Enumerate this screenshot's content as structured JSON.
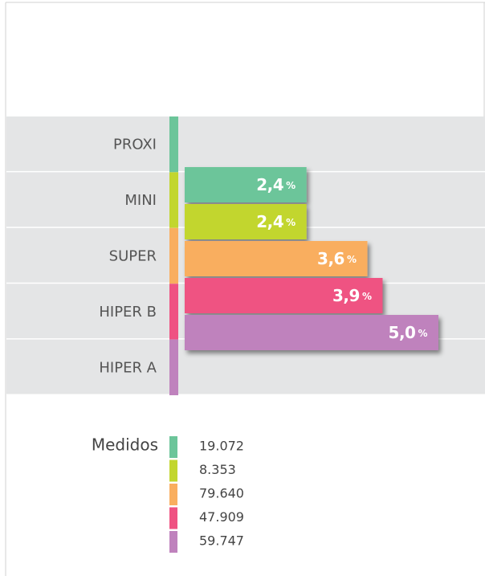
{
  "chart_data": {
    "type": "bar",
    "categories": [
      "PROXI",
      "MINI",
      "SUPER",
      "HIPER B",
      "HIPER A"
    ],
    "values": [
      2.4,
      2.4,
      3.6,
      3.9,
      5.0
    ],
    "value_labels": [
      "2,4",
      "2,4",
      "3,6",
      "3,9",
      "5,0"
    ],
    "value_suffix": "%",
    "colors": [
      "#6cc59a",
      "#c2d62e",
      "#f9ae5f",
      "#ef5282",
      "#bf82bd"
    ],
    "xlim": [
      0,
      5
    ]
  },
  "legend": {
    "title": "Medidos",
    "items": [
      "19.072",
      "8.353",
      "79.640",
      "47.909",
      "59.747"
    ]
  }
}
